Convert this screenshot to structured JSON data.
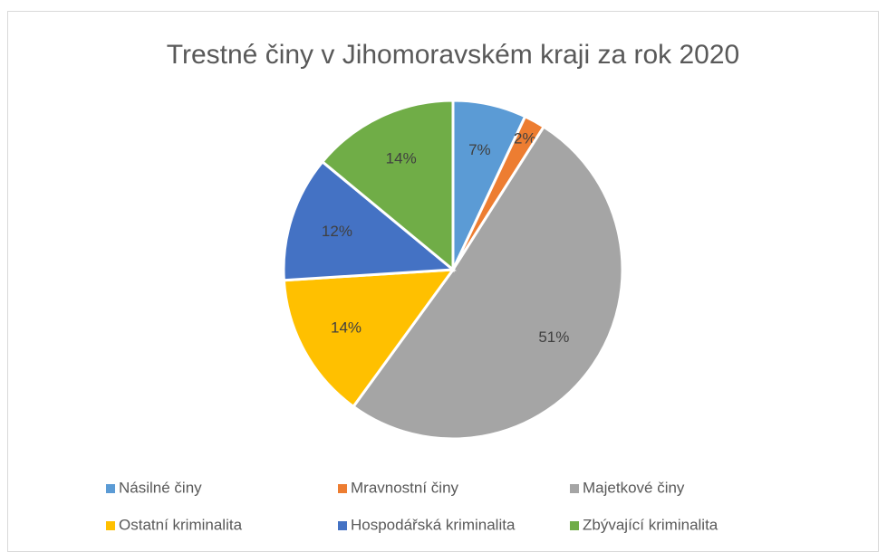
{
  "chart_data": {
    "type": "pie",
    "title": "Trestné činy v Jihomoravském kraji za rok 2020",
    "categories": [
      "Násilné činy",
      "Mravnostní činy",
      "Majetkové činy",
      "Ostatní kriminalita",
      "Hospodářská kriminalita",
      "Zbývající kriminalita"
    ],
    "values": [
      7,
      2,
      51,
      14,
      12,
      14
    ],
    "value_labels": [
      "7%",
      "2%",
      "51%",
      "14%",
      "12%",
      "14%"
    ],
    "colors": [
      "#5b9bd5",
      "#ed7d31",
      "#a5a5a5",
      "#ffc000",
      "#4472c4",
      "#70ad47"
    ],
    "legend": "bottom"
  }
}
